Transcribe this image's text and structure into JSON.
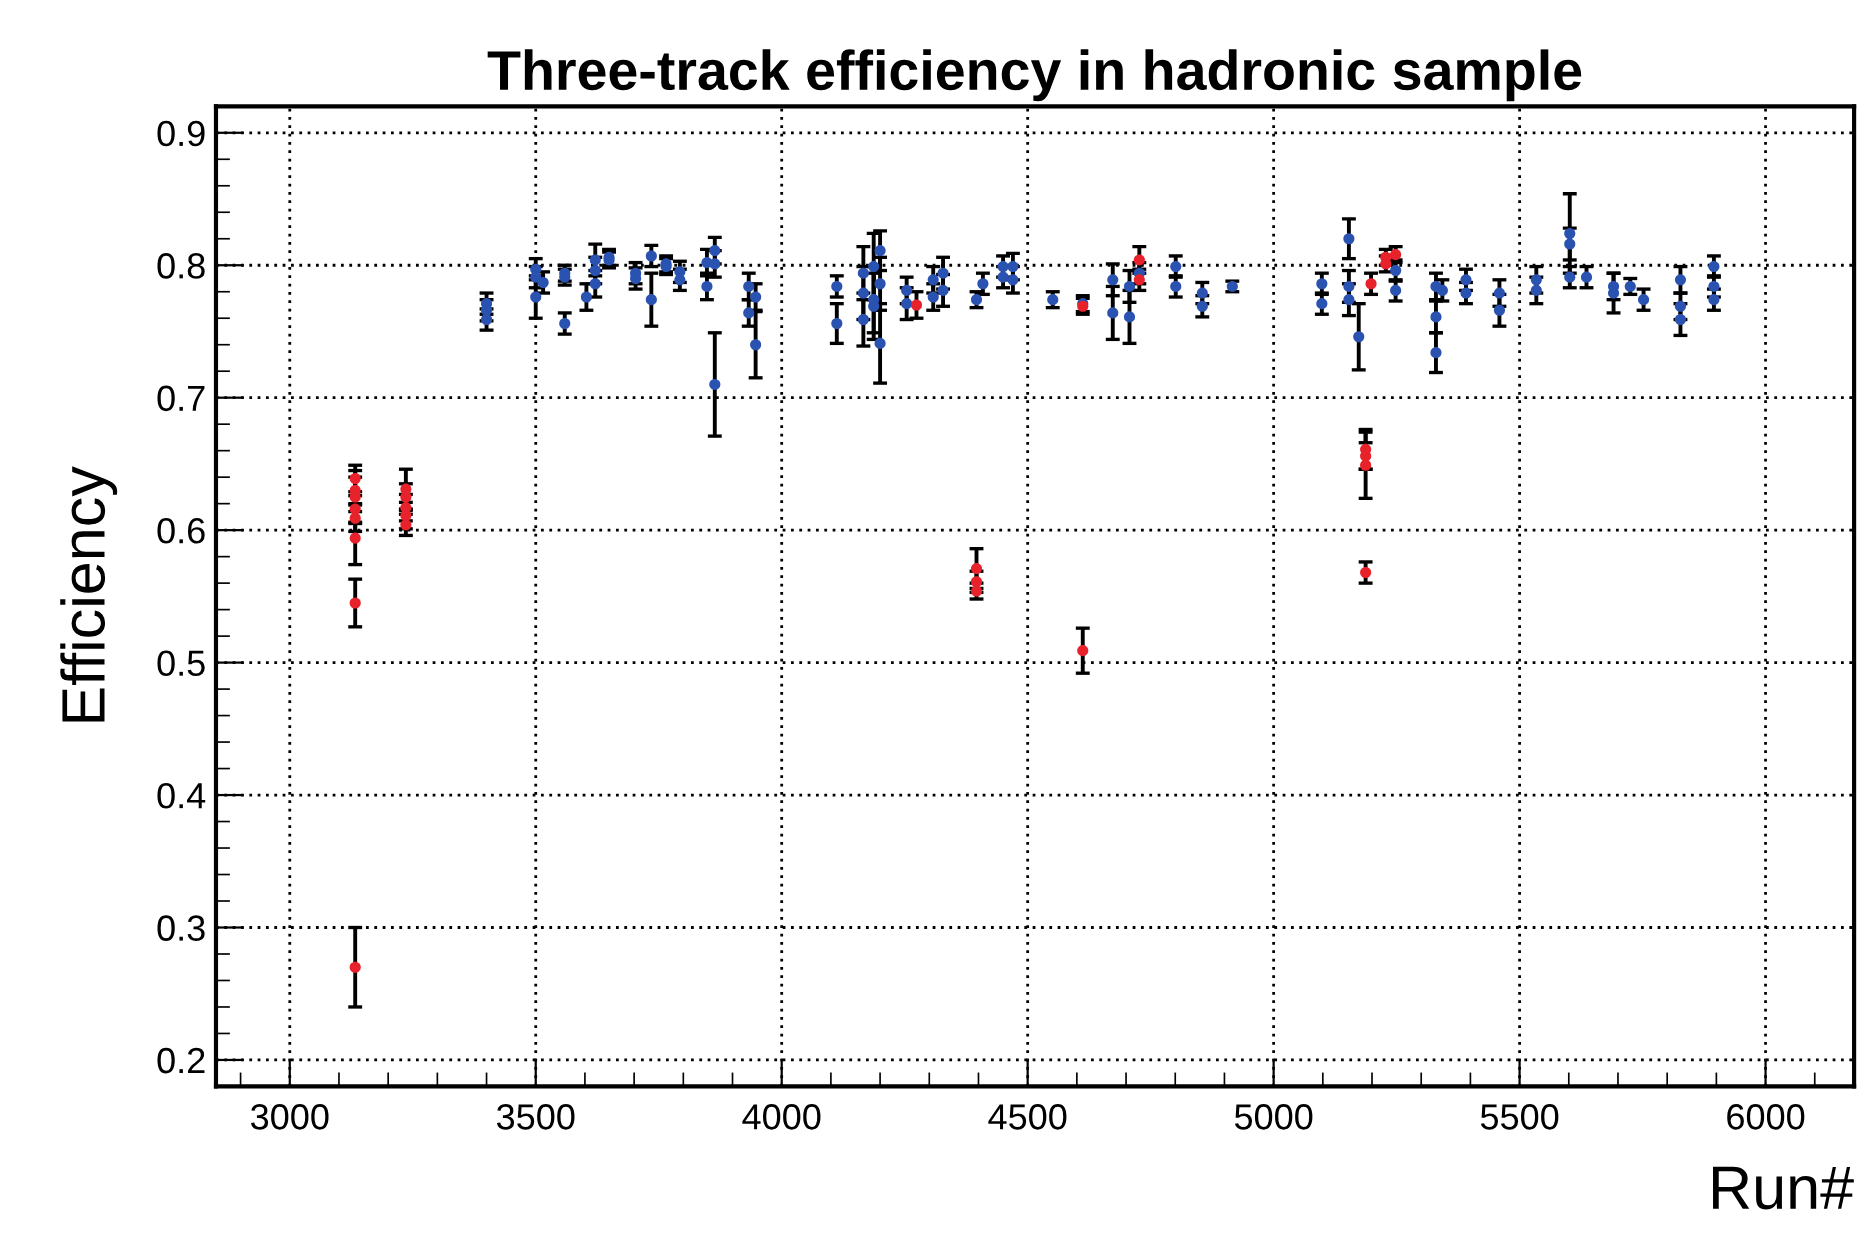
{
  "chart_data": {
    "type": "scatter",
    "title": "Three-track efficiency in hadronic sample",
    "xlabel": "Run#",
    "ylabel": "Efficiency",
    "xlim": [
      2850,
      6180
    ],
    "ylim": [
      0.18,
      0.92
    ],
    "xticks": [
      3000,
      3500,
      4000,
      4500,
      5000,
      5500,
      6000
    ],
    "yticks": [
      {
        "value": 0.2,
        "label": "0.2"
      },
      {
        "value": 0.3,
        "label": "0.3"
      },
      {
        "value": 0.4,
        "label": "0.4"
      },
      {
        "value": 0.5,
        "label": "0.5"
      },
      {
        "value": 0.6,
        "label": "0.6"
      },
      {
        "value": 0.7,
        "label": "0.7"
      },
      {
        "value": 0.8,
        "label": "0.8"
      },
      {
        "value": 0.9,
        "label": "0.9"
      }
    ],
    "grid": true,
    "legend": false,
    "marker": "circle",
    "series": [
      {
        "color": "#2a52b0",
        "x": [
          3400,
          3400,
          3400,
          3500,
          3500,
          3500,
          3515,
          3559,
          3559,
          3559,
          3603,
          3621,
          3621,
          3621,
          3649,
          3649,
          3703,
          3703,
          3735,
          3735,
          3765,
          3765,
          3793,
          3793,
          3848,
          3848,
          3864,
          3864,
          3864,
          3933,
          3933,
          3947,
          3947,
          4112,
          4112,
          4166,
          4166,
          4166,
          4187,
          4187,
          4187,
          4200,
          4200,
          4200,
          4254,
          4254,
          4308,
          4308,
          4328,
          4328,
          4396,
          4409,
          4450,
          4450,
          4470,
          4470,
          4551,
          4612,
          4673,
          4673,
          4707,
          4707,
          4727,
          4801,
          4801,
          4855,
          4855,
          4916,
          5098,
          5098,
          5153,
          5153,
          5153,
          5173,
          5248,
          5248,
          5330,
          5330,
          5330,
          5343,
          5391,
          5391,
          5459,
          5459,
          5534,
          5534,
          5602,
          5602,
          5602,
          5636,
          5691,
          5691,
          5725,
          5752,
          5827,
          5827,
          5827,
          5895,
          5895,
          5895
        ],
        "values": [
          0.771,
          0.766,
          0.759,
          0.797,
          0.791,
          0.776,
          0.787,
          0.794,
          0.791,
          0.756,
          0.776,
          0.786,
          0.796,
          0.804,
          0.804,
          0.806,
          0.794,
          0.79,
          0.807,
          0.774,
          0.801,
          0.799,
          0.795,
          0.789,
          0.802,
          0.784,
          0.811,
          0.801,
          0.71,
          0.784,
          0.764,
          0.776,
          0.74,
          0.784,
          0.756,
          0.794,
          0.779,
          0.759,
          0.799,
          0.774,
          0.769,
          0.811,
          0.786,
          0.741,
          0.781,
          0.771,
          0.789,
          0.776,
          0.794,
          0.781,
          0.774,
          0.786,
          0.791,
          0.799,
          0.799,
          0.789,
          0.774,
          0.771,
          0.789,
          0.764,
          0.784,
          0.761,
          0.794,
          0.799,
          0.784,
          0.779,
          0.769,
          0.784,
          0.786,
          0.771,
          0.82,
          0.784,
          0.774,
          0.746,
          0.796,
          0.781,
          0.784,
          0.761,
          0.734,
          0.781,
          0.789,
          0.779,
          0.779,
          0.766,
          0.789,
          0.781,
          0.824,
          0.816,
          0.791,
          0.791,
          0.784,
          0.779,
          0.784,
          0.774,
          0.789,
          0.769,
          0.759,
          0.799,
          0.784,
          0.774
        ],
        "errors": [
          0.008,
          0.008,
          0.008,
          0.008,
          0.008,
          0.016,
          0.008,
          0.006,
          0.006,
          0.008,
          0.01,
          0.01,
          0.01,
          0.012,
          0.006,
          0.006,
          0.008,
          0.008,
          0.008,
          0.02,
          0.006,
          0.006,
          0.008,
          0.008,
          0.01,
          0.01,
          0.01,
          0.01,
          0.039,
          0.01,
          0.01,
          0.01,
          0.025,
          0.008,
          0.015,
          0.02,
          0.02,
          0.02,
          0.025,
          0.025,
          0.025,
          0.015,
          0.02,
          0.03,
          0.01,
          0.012,
          0.01,
          0.01,
          0.012,
          0.012,
          0.006,
          0.008,
          0.008,
          0.008,
          0.01,
          0.01,
          0.006,
          0.006,
          0.012,
          0.02,
          0.012,
          0.02,
          0.008,
          0.008,
          0.008,
          0.008,
          0.008,
          0.004,
          0.008,
          0.008,
          0.015,
          0.012,
          0.012,
          0.025,
          0.008,
          0.008,
          0.01,
          0.012,
          0.015,
          0.008,
          0.008,
          0.008,
          0.01,
          0.012,
          0.01,
          0.01,
          0.03,
          0.012,
          0.008,
          0.008,
          0.01,
          0.015,
          0.006,
          0.008,
          0.01,
          0.01,
          0.012,
          0.008,
          0.008,
          0.008
        ]
      },
      {
        "color": "#e8222a",
        "x": [
          3133,
          3133,
          3133,
          3133,
          3133,
          3133,
          3133,
          3133,
          3236,
          3236,
          3236,
          3236,
          3236,
          4274,
          4396,
          4396,
          4396,
          4612,
          4612,
          4727,
          4727,
          5187,
          5187,
          5187,
          5187,
          5198,
          5228,
          5228,
          5248
        ],
        "values": [
          0.639,
          0.63,
          0.625,
          0.616,
          0.609,
          0.594,
          0.545,
          0.27,
          0.631,
          0.625,
          0.617,
          0.611,
          0.604,
          0.77,
          0.571,
          0.561,
          0.554,
          0.769,
          0.509,
          0.804,
          0.789,
          0.661,
          0.656,
          0.649,
          0.568,
          0.786,
          0.801,
          0.806,
          0.808
        ],
        "errors": [
          0.01,
          0.01,
          0.02,
          0.01,
          0.01,
          0.02,
          0.018,
          0.03,
          0.015,
          0.01,
          0.01,
          0.01,
          0.008,
          0.01,
          0.015,
          0.008,
          0.006,
          0.006,
          0.017,
          0.01,
          0.008,
          0.015,
          0.01,
          0.025,
          0.008,
          0.008,
          0.006,
          0.006,
          0.006
        ]
      }
    ]
  }
}
